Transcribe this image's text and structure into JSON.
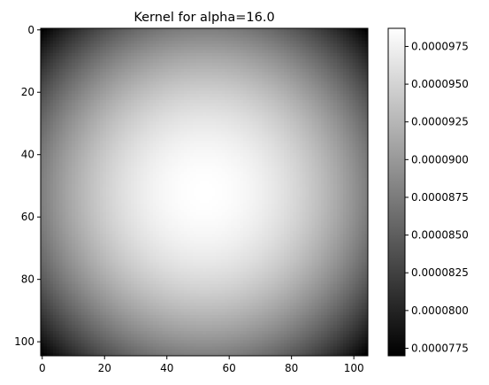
{
  "chart_data": [
    {
      "type": "heatmap",
      "title": "Kernel for alpha=16.0",
      "colormap": "gray",
      "grid_size": [
        105,
        105
      ],
      "peak_location": [
        52,
        52
      ],
      "value_range": [
        7.7e-05,
        9.87e-05
      ],
      "xlim": [
        -0.5,
        104.5
      ],
      "ylim": [
        104.5,
        -0.5
      ],
      "xticks": [
        0,
        20,
        40,
        60,
        80,
        100
      ],
      "yticks": [
        0,
        20,
        40,
        60,
        80,
        100
      ],
      "xtick_labels": [
        "0",
        "20",
        "40",
        "60",
        "80",
        "100"
      ],
      "ytick_labels": [
        "0",
        "20",
        "40",
        "60",
        "80",
        "100"
      ],
      "grid": false
    },
    {
      "type": "colorbar",
      "colormap": "gray",
      "range": [
        7.7e-05,
        9.87e-05
      ],
      "ticks": [
        7.75e-05,
        8e-05,
        8.25e-05,
        8.5e-05,
        8.75e-05,
        9e-05,
        9.25e-05,
        9.5e-05,
        9.75e-05
      ],
      "tick_labels": [
        "0.0000775",
        "0.0000800",
        "0.0000825",
        "0.0000850",
        "0.0000875",
        "0.0000900",
        "0.0000925",
        "0.0000950",
        "0.0000975"
      ]
    }
  ]
}
